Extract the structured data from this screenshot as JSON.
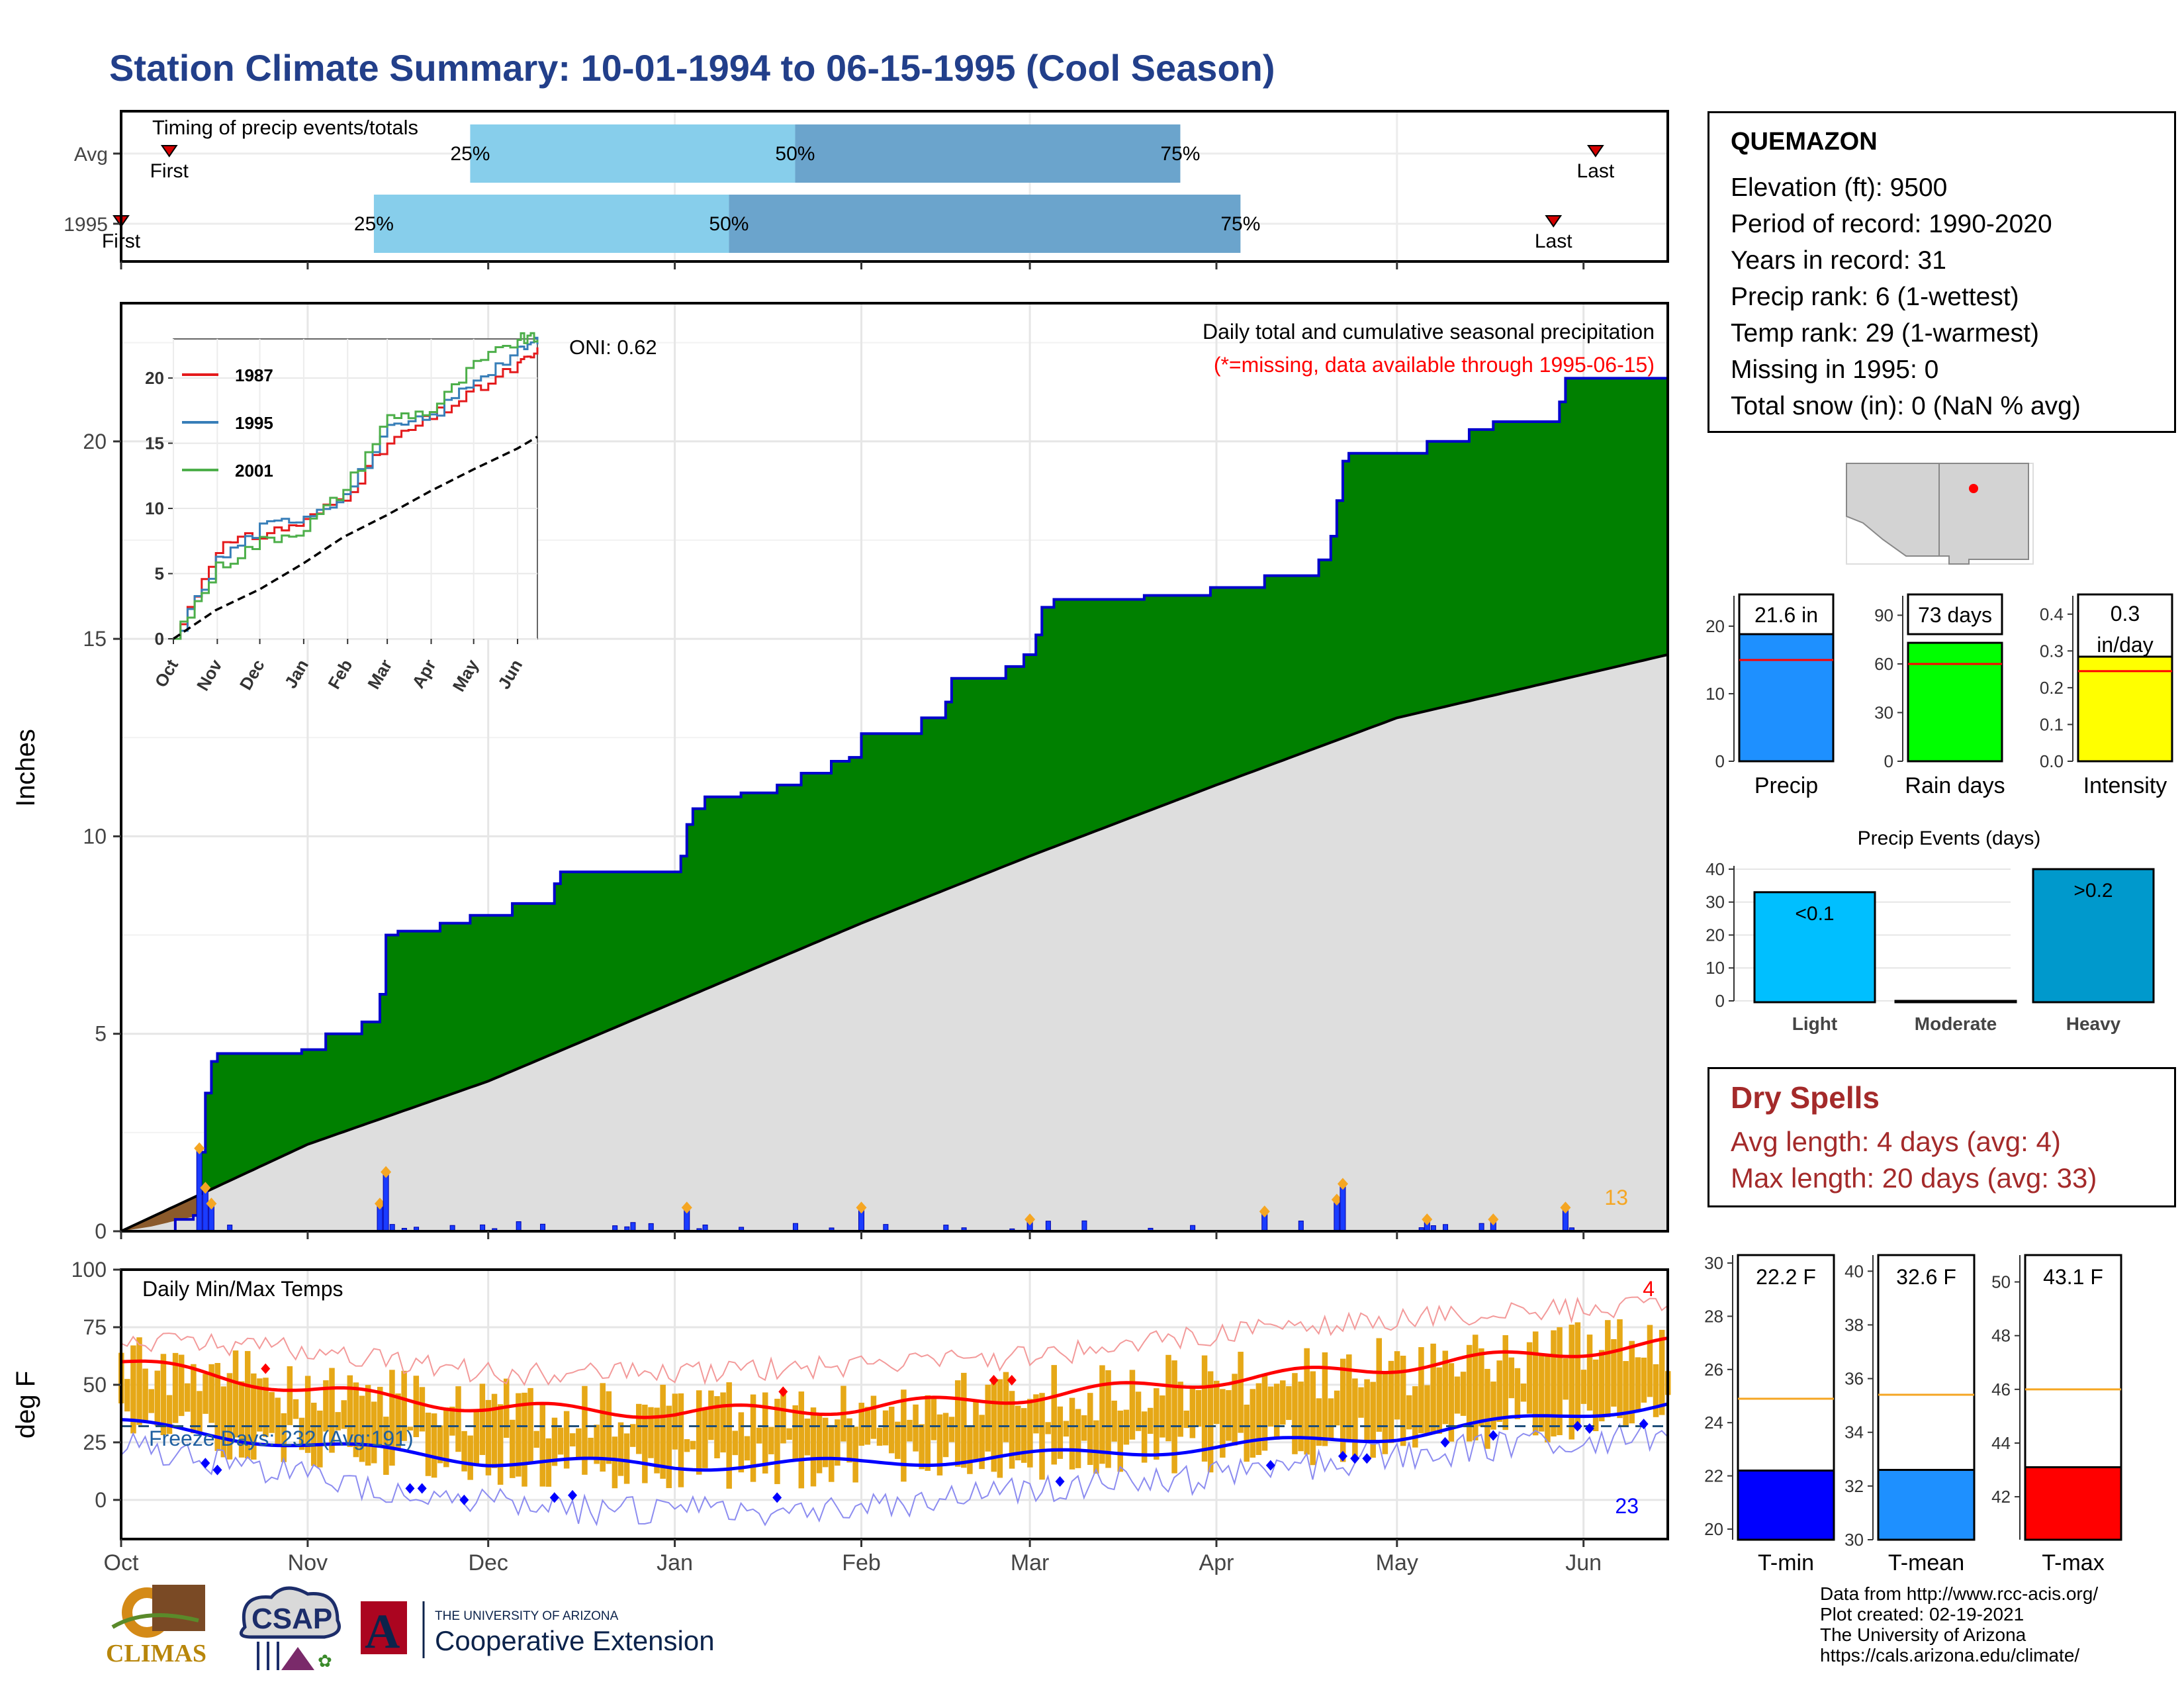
{
  "title": "Station Climate Summary: 10-01-1994 to 06-15-1995 (Cool Season)",
  "timing_panel": {
    "label": "Timing of precip events/totals",
    "rows": [
      {
        "name": "Avg",
        "first_label": "First",
        "last_label": "Last",
        "first_day": 8,
        "last_day": 245,
        "p25_day": 58,
        "p50_day": 112,
        "p75_day": 176
      },
      {
        "name": "1995",
        "first_label": "First",
        "last_label": "Last",
        "first_day": 0,
        "last_day": 238,
        "p25_day": 42,
        "p50_day": 101,
        "p75_day": 186
      }
    ],
    "pct_labels": [
      "25%",
      "50%",
      "75%"
    ],
    "colors": {
      "light": "#87ceeb",
      "dark": "#6ba4cc",
      "marker": "#d40000"
    }
  },
  "precip_panel": {
    "ylabel": "Inches",
    "yticks": [
      "0",
      "5",
      "10",
      "15",
      "20"
    ],
    "oni": "ONI: 0.62",
    "caption": "Daily total and cumulative seasonal precipitation",
    "missing_note": "(*=missing, data available through 1995-06-15)",
    "count_label": "13",
    "colors": {
      "above": "#008000",
      "avg": "#dedede",
      "line": "#0000cc",
      "bars": "#1a3cff",
      "dot": "#f5a623",
      "count": "#f5a623"
    },
    "inset": {
      "yticks": [
        "0",
        "5",
        "10",
        "15",
        "20"
      ],
      "xticks": [
        "Oct",
        "Nov",
        "Dec",
        "Jan",
        "Feb",
        "Mar",
        "Apr",
        "May",
        "Jun"
      ],
      "legend": [
        {
          "name": "1987",
          "color": "#e41a1c"
        },
        {
          "name": "1995",
          "color": "#377eb8"
        },
        {
          "name": "2001",
          "color": "#4daf4a"
        }
      ]
    }
  },
  "temp_panel": {
    "ylabel": "deg F",
    "yticks": [
      "0",
      "25",
      "50",
      "75",
      "100"
    ],
    "label": "Daily Min/Max Temps",
    "freeze": "Freeze Days: 232 (Avg:191)",
    "hot_count": "4",
    "cold_count": "23",
    "colors": {
      "bars": "#e6a817",
      "max_line": "#ff0000",
      "min_line": "#0000ff",
      "max_thin": "#f39a9a",
      "min_thin": "#8c8cf0"
    }
  },
  "xticks": [
    "Oct",
    "Nov",
    "Dec",
    "Jan",
    "Feb",
    "Mar",
    "Apr",
    "May",
    "Jun"
  ],
  "station": {
    "name": "QUEMAZON",
    "rows": [
      "Elevation (ft): 9500",
      "Period of record: 1990-2020",
      "Years in record: 31",
      "Precip rank: 6 (1-wettest)",
      "Temp rank: 29 (1-warmest)",
      "Missing in 1995: 0",
      "Total snow (in): 0 (NaN % avg)"
    ]
  },
  "summary_bars": [
    {
      "label": "Precip",
      "value_text": "21.6 in",
      "value": 21.6,
      "avg": 15,
      "yticks": [
        "0",
        "10",
        "20"
      ],
      "ymin": 0,
      "ymax": 24.5,
      "color": "#1e90ff"
    },
    {
      "label": "Rain days",
      "value_text": "73 days",
      "value": 73,
      "avg": 60,
      "yticks": [
        "0",
        "30",
        "60",
        "90"
      ],
      "ymin": 0,
      "ymax": 102,
      "color": "#00ff00"
    },
    {
      "label": "Intensity",
      "value_text": "0.3 in/day",
      "value": 0.3,
      "avg": 0.245,
      "yticks": [
        "0.0",
        "0.1",
        "0.2",
        "0.3",
        "0.4"
      ],
      "ymin": 0,
      "ymax": 0.45,
      "color": "#ffff00"
    }
  ],
  "precip_events": {
    "title": "Precip Events (days)",
    "yticks": [
      "0",
      "10",
      "20",
      "30",
      "40"
    ],
    "categories": [
      "Light",
      "Moderate",
      "Heavy"
    ],
    "bar_labels": [
      "<0.1",
      "",
      ">0.2"
    ],
    "colors": [
      "#00bfff",
      "#6fa8dc",
      "#0099cc"
    ]
  },
  "dry_spells": {
    "heading": "Dry Spells",
    "avg_length": "Avg length: 4 days (avg: 4)",
    "max_length": "Max length: 20 days (avg: 33)"
  },
  "temp_summary": [
    {
      "label": "T-min",
      "value_text": "22.2 F",
      "value": 22.2,
      "avg": 24.9,
      "ymin": 19.6,
      "ymax": 30.3,
      "yticks": [
        "20",
        "22",
        "24",
        "26",
        "28",
        "30"
      ],
      "color": "#0000ff"
    },
    {
      "label": "T-mean",
      "value_text": "32.6 F",
      "value": 32.6,
      "avg": 35.4,
      "ymin": 30,
      "ymax": 40.6,
      "yticks": [
        "30",
        "32",
        "34",
        "36",
        "38",
        "40"
      ],
      "color": "#1e90ff"
    },
    {
      "label": "T-max",
      "value_text": "43.1 F",
      "value": 43.1,
      "avg": 46,
      "ymin": 40.4,
      "ymax": 51,
      "yticks": [
        "42",
        "44",
        "46",
        "48",
        "50"
      ],
      "color": "#ff0000"
    }
  ],
  "logos": {
    "climas": "CLIMAS",
    "csap": "CSAP",
    "ua_small": "THE UNIVERSITY OF ARIZONA",
    "ua_big": "Cooperative Extension",
    "ua_letter": "A"
  },
  "credits": [
    "Data from http://www.rcc-acis.org/",
    "Plot created: 02-19-2021",
    "The University of Arizona",
    "https://cals.arizona.edu/climate/"
  ],
  "chart_data": [
    {
      "type": "bar",
      "title": "Timing of precip events/totals",
      "categories": [
        "Avg",
        "1995"
      ],
      "series": [
        {
          "name": "First",
          "values": [
            8,
            0
          ]
        },
        {
          "name": "25%",
          "values": [
            58,
            42
          ]
        },
        {
          "name": "50%",
          "values": [
            112,
            101
          ]
        },
        {
          "name": "75%",
          "values": [
            176,
            186
          ]
        },
        {
          "name": "Last",
          "values": [
            245,
            238
          ]
        }
      ]
    },
    {
      "type": "area",
      "title": "Daily total and cumulative seasonal precipitation",
      "ylabel": "Inches",
      "ylim": [
        0,
        23.5
      ],
      "x_start": "1994-10-01",
      "x_end": "1995-06-15",
      "cumulative_1995": [
        {
          "x": "1994-10-01",
          "y": 0.0
        },
        {
          "x": "1994-10-10",
          "y": 0.3
        },
        {
          "x": "1994-10-13",
          "y": 0.4
        },
        {
          "x": "1994-10-14",
          "y": 2.0
        },
        {
          "x": "1994-10-15",
          "y": 3.5
        },
        {
          "x": "1994-10-16",
          "y": 4.3
        },
        {
          "x": "1994-10-17",
          "y": 4.5
        },
        {
          "x": "1994-10-31",
          "y": 4.6
        },
        {
          "x": "1994-11-04",
          "y": 5.0
        },
        {
          "x": "1994-11-10",
          "y": 5.3
        },
        {
          "x": "1994-11-13",
          "y": 6.0
        },
        {
          "x": "1994-11-14",
          "y": 7.5
        },
        {
          "x": "1994-11-16",
          "y": 7.6
        },
        {
          "x": "1994-11-23",
          "y": 7.8
        },
        {
          "x": "1994-11-28",
          "y": 8.0
        },
        {
          "x": "1994-12-05",
          "y": 8.3
        },
        {
          "x": "1994-12-12",
          "y": 8.8
        },
        {
          "x": "1994-12-13",
          "y": 9.1
        },
        {
          "x": "1994-12-31",
          "y": 9.1
        },
        {
          "x": "1995-01-02",
          "y": 9.5
        },
        {
          "x": "1995-01-03",
          "y": 10.3
        },
        {
          "x": "1995-01-04",
          "y": 10.7
        },
        {
          "x": "1995-01-06",
          "y": 11.0
        },
        {
          "x": "1995-01-12",
          "y": 11.1
        },
        {
          "x": "1995-01-18",
          "y": 11.3
        },
        {
          "x": "1995-01-22",
          "y": 11.6
        },
        {
          "x": "1995-01-27",
          "y": 11.9
        },
        {
          "x": "1995-01-30",
          "y": 12.0
        },
        {
          "x": "1995-02-01",
          "y": 12.6
        },
        {
          "x": "1995-02-09",
          "y": 12.6
        },
        {
          "x": "1995-02-11",
          "y": 13.0
        },
        {
          "x": "1995-02-15",
          "y": 13.4
        },
        {
          "x": "1995-02-16",
          "y": 14.0
        },
        {
          "x": "1995-02-25",
          "y": 14.3
        },
        {
          "x": "1995-02-28",
          "y": 14.6
        },
        {
          "x": "1995-03-02",
          "y": 15.1
        },
        {
          "x": "1995-03-03",
          "y": 15.8
        },
        {
          "x": "1995-03-05",
          "y": 16.0
        },
        {
          "x": "1995-03-20",
          "y": 16.1
        },
        {
          "x": "1995-03-31",
          "y": 16.3
        },
        {
          "x": "1995-04-09",
          "y": 16.6
        },
        {
          "x": "1995-04-18",
          "y": 17.0
        },
        {
          "x": "1995-04-20",
          "y": 17.6
        },
        {
          "x": "1995-04-21",
          "y": 18.5
        },
        {
          "x": "1995-04-22",
          "y": 19.5
        },
        {
          "x": "1995-04-23",
          "y": 19.7
        },
        {
          "x": "1995-05-06",
          "y": 20.0
        },
        {
          "x": "1995-05-13",
          "y": 20.3
        },
        {
          "x": "1995-05-17",
          "y": 20.5
        },
        {
          "x": "1995-05-28",
          "y": 21.0
        },
        {
          "x": "1995-05-29",
          "y": 21.6
        },
        {
          "x": "1995-06-15",
          "y": 21.6
        }
      ],
      "cumulative_avg": [
        {
          "x": "1994-10-01",
          "y": 0.0
        },
        {
          "x": "1994-11-01",
          "y": 2.2
        },
        {
          "x": "1994-12-01",
          "y": 3.8
        },
        {
          "x": "1995-01-01",
          "y": 5.8
        },
        {
          "x": "1995-02-01",
          "y": 7.8
        },
        {
          "x": "1995-03-01",
          "y": 9.5
        },
        {
          "x": "1995-04-01",
          "y": 11.3
        },
        {
          "x": "1995-05-01",
          "y": 13.0
        },
        {
          "x": "1995-06-15",
          "y": 14.6
        }
      ],
      "daily_1995": [
        {
          "x": "1994-10-14",
          "y": 2.1
        },
        {
          "x": "1994-10-15",
          "y": 1.1
        },
        {
          "x": "1994-10-16",
          "y": 0.7
        },
        {
          "x": "1994-11-13",
          "y": 0.7
        },
        {
          "x": "1994-11-14",
          "y": 1.5
        },
        {
          "x": "1995-01-03",
          "y": 0.6
        },
        {
          "x": "1995-02-01",
          "y": 0.6
        },
        {
          "x": "1995-03-01",
          "y": 0.3
        },
        {
          "x": "1995-04-09",
          "y": 0.5
        },
        {
          "x": "1995-04-21",
          "y": 0.8
        },
        {
          "x": "1995-04-22",
          "y": 1.2
        },
        {
          "x": "1995-05-06",
          "y": 0.3
        },
        {
          "x": "1995-05-17",
          "y": 0.3
        },
        {
          "x": "1995-05-29",
          "y": 0.6
        }
      ]
    },
    {
      "type": "line",
      "title": "",
      "xlabel": "",
      "ylabel": "",
      "xticks": [
        "Oct",
        "Nov",
        "Dec",
        "Jan",
        "Feb",
        "Mar",
        "Apr",
        "May",
        "Jun"
      ],
      "ylim": [
        0,
        23
      ],
      "series": [
        {
          "name": "1987",
          "x": [
            0,
            30,
            61,
            92,
            120,
            151,
            181,
            212,
            243,
            257
          ],
          "values": [
            0,
            7,
            8,
            9,
            11,
            15,
            17,
            19,
            21,
            22
          ]
        },
        {
          "name": "1995",
          "x": [
            0,
            30,
            61,
            92,
            120,
            151,
            181,
            212,
            243,
            257
          ],
          "values": [
            0,
            6,
            8.5,
            9.5,
            11,
            16,
            17,
            20,
            22,
            23
          ]
        },
        {
          "name": "2001",
          "x": [
            0,
            30,
            61,
            92,
            120,
            151,
            181,
            212,
            243,
            257
          ],
          "values": [
            0,
            5.5,
            7.5,
            8.5,
            11.5,
            17,
            17.5,
            21,
            23,
            23
          ]
        },
        {
          "name": "",
          "x": [
            0,
            30,
            61,
            92,
            120,
            151,
            181,
            212,
            243,
            257
          ],
          "values": [
            0,
            2.2,
            3.8,
            5.8,
            7.8,
            9.5,
            11.3,
            13,
            14.6,
            15.5
          ]
        }
      ]
    },
    {
      "type": "line",
      "title": "Daily Min/Max Temps",
      "ylabel": "deg F",
      "ylim": [
        -17,
        100
      ],
      "x": [
        "1994-10-01",
        "1994-11-01",
        "1994-12-01",
        "1995-01-01",
        "1995-02-01",
        "1995-03-01",
        "1995-04-01",
        "1995-05-01",
        "1995-06-15"
      ],
      "series": [
        {
          "name": "avg max",
          "values": [
            60,
            48,
            40,
            38,
            40,
            45,
            52,
            58,
            68
          ]
        },
        {
          "name": "avg min",
          "values": [
            33,
            24,
            17,
            15,
            16,
            19,
            23,
            28,
            42
          ]
        },
        {
          "name": "record high",
          "values": [
            70,
            65,
            55,
            55,
            58,
            62,
            72,
            78,
            85
          ]
        },
        {
          "name": "record low",
          "values": [
            25,
            10,
            -2,
            -5,
            -3,
            5,
            10,
            20,
            28
          ]
        }
      ]
    },
    {
      "type": "bar",
      "categories": [
        "Precip",
        "Rain days",
        "Intensity"
      ],
      "values": [
        21.6,
        73,
        0.3
      ]
    },
    {
      "type": "bar",
      "title": "Precip Events (days)",
      "categories": [
        "Light",
        "Moderate",
        "Heavy"
      ],
      "values": [
        33,
        0,
        40
      ]
    },
    {
      "type": "bar",
      "categories": [
        "T-min",
        "T-mean",
        "T-max"
      ],
      "values": [
        22.2,
        32.6,
        43.1
      ]
    }
  ]
}
